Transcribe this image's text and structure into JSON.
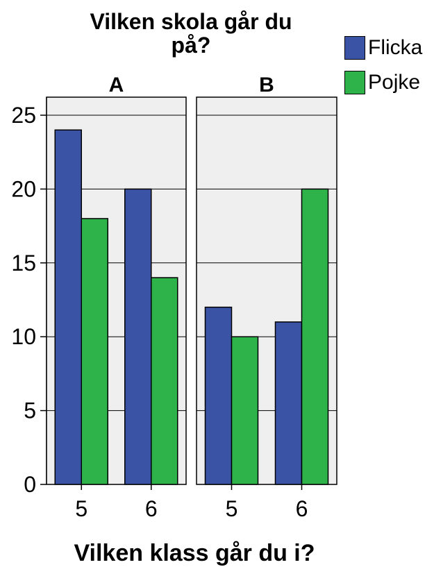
{
  "chart_data": {
    "type": "bar",
    "title_lines": [
      "Vilken skola går du",
      "på?"
    ],
    "xlabel": "Vilken klass går du i?",
    "ylabel": "",
    "ylim": [
      0,
      25
    ],
    "yticks": [
      "0",
      "5",
      "10",
      "15",
      "20",
      "25"
    ],
    "grid": true,
    "legend_position": "top-right",
    "panels": [
      {
        "label": "A",
        "categories": [
          "5",
          "6"
        ],
        "series": [
          {
            "name": "Flicka",
            "values": [
              24,
              20
            ]
          },
          {
            "name": "Pojke",
            "values": [
              18,
              14
            ]
          }
        ]
      },
      {
        "label": "B",
        "categories": [
          "5",
          "6"
        ],
        "series": [
          {
            "name": "Flicka",
            "values": [
              12,
              11
            ]
          },
          {
            "name": "Pojke",
            "values": [
              10,
              20
            ]
          }
        ]
      }
    ],
    "legend": [
      {
        "name": "Flicka",
        "color": "#3a53a4"
      },
      {
        "name": "Pojke",
        "color": "#2db34a"
      }
    ],
    "colors": {
      "panel_bg": "#efefef",
      "grid": "#000000"
    }
  }
}
